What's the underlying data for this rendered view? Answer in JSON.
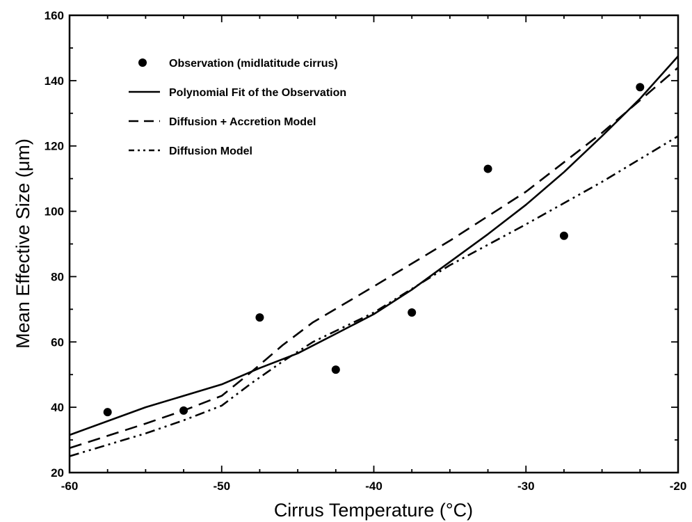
{
  "chart_data": {
    "type": "line",
    "xlabel": "Cirrus Temperature (°C)",
    "ylabel": "Mean Effective Size (μm)",
    "xlim": [
      -60,
      -20
    ],
    "ylim": [
      20,
      160
    ],
    "x_ticks": [
      -60,
      -50,
      -40,
      -30,
      -20
    ],
    "y_ticks": [
      20,
      40,
      60,
      80,
      100,
      120,
      140,
      160
    ],
    "grid": false,
    "legend_position": "top-left",
    "series": [
      {
        "name": "Observation (midlatitude cirrus)",
        "style": "markers",
        "x": [
          -57.5,
          -52.5,
          -47.5,
          -42.5,
          -37.5,
          -32.5,
          -27.5,
          -22.5
        ],
        "y": [
          38.5,
          39,
          67.5,
          51.5,
          69,
          113,
          92.5,
          138
        ]
      },
      {
        "name": "Polynomial Fit of the Observation",
        "style": "solid",
        "x": [
          -60,
          -55,
          -50,
          -47.5,
          -45,
          -42.5,
          -40,
          -37.5,
          -35,
          -32.5,
          -30,
          -27.5,
          -25,
          -22.5,
          -20
        ],
        "y": [
          31.5,
          40,
          47,
          52,
          56.5,
          62.5,
          68.5,
          76,
          84.5,
          93,
          102,
          112,
          123,
          134.5,
          147.5
        ]
      },
      {
        "name": "Diffusion + Accretion Model",
        "style": "dashed",
        "x": [
          -60,
          -55,
          -52.5,
          -50,
          -48,
          -46,
          -44,
          -42,
          -40,
          -35,
          -30,
          -25,
          -20
        ],
        "y": [
          27.5,
          35,
          39,
          43.5,
          51,
          59,
          66,
          71.5,
          77,
          91,
          106,
          124,
          144
        ]
      },
      {
        "name": "Diffusion Model",
        "style": "dash-dot-dot",
        "x": [
          -60,
          -55,
          -52.5,
          -50,
          -48,
          -46,
          -44,
          -42,
          -40,
          -35,
          -30,
          -25,
          -20
        ],
        "y": [
          25,
          32,
          36,
          40.5,
          47.5,
          54,
          60,
          64.5,
          69,
          83.5,
          96,
          109,
          123
        ]
      }
    ]
  }
}
